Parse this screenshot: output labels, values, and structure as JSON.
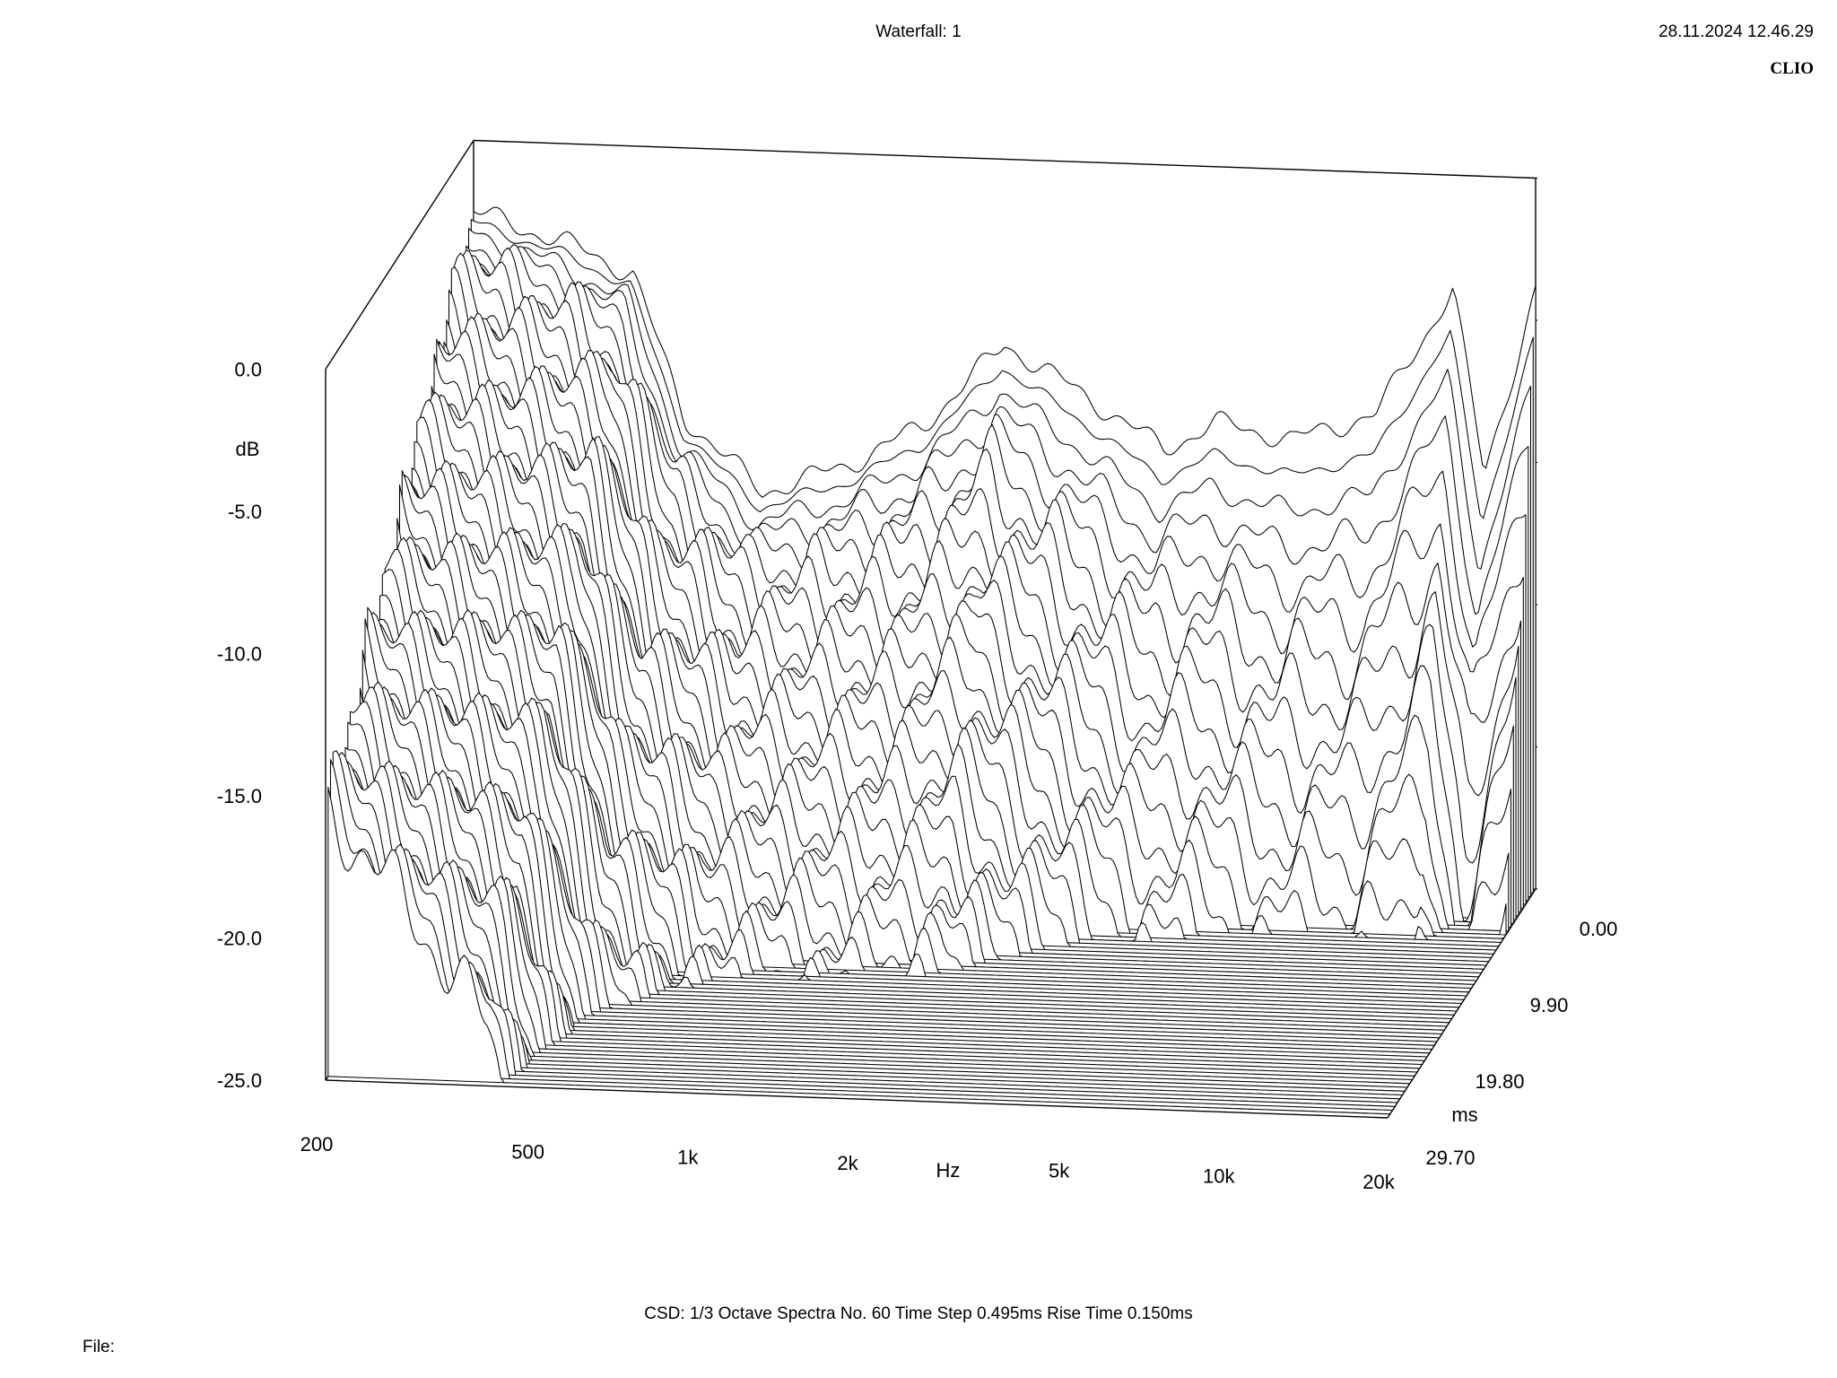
{
  "header": {
    "title": "Waterfall: 1",
    "timestamp": "28.11.2024 12.46.29",
    "brand": "CLIO"
  },
  "footer": {
    "info": "CSD:   1/3 Octave   Spectra No. 60   Time Step 0.495ms   Rise Time 0.150ms",
    "file_label": "File:"
  },
  "chart_data": {
    "type": "waterfall",
    "title": "Waterfall: 1",
    "x_axis": {
      "label": "Hz",
      "scale": "log",
      "range": [
        200,
        20000
      ],
      "ticks": [
        {
          "value": 200,
          "label": "200"
        },
        {
          "value": 500,
          "label": "500"
        },
        {
          "value": 1000,
          "label": "1k"
        },
        {
          "value": 2000,
          "label": "2k"
        },
        {
          "value": 5000,
          "label": "5k"
        },
        {
          "value": 10000,
          "label": "10k"
        },
        {
          "value": 20000,
          "label": "20k"
        }
      ]
    },
    "y_axis": {
      "label": "dB",
      "range": [
        -25,
        0
      ],
      "ticks": [
        {
          "value": 0,
          "label": "0.0"
        },
        {
          "value": -5,
          "label": "-5.0"
        },
        {
          "value": -10,
          "label": "-10.0"
        },
        {
          "value": -15,
          "label": "-15.0"
        },
        {
          "value": -20,
          "label": "-20.0"
        },
        {
          "value": -25,
          "label": "-25.0"
        }
      ]
    },
    "z_axis": {
      "label": "ms",
      "range": [
        0,
        29.7
      ],
      "ticks": [
        {
          "value": 0,
          "label": "0.00"
        },
        {
          "value": 9.9,
          "label": "9.90"
        },
        {
          "value": 19.8,
          "label": "19.80"
        },
        {
          "value": 29.7,
          "label": "29.70"
        }
      ]
    },
    "spectra_count": 60,
    "time_step_ms": 0.495,
    "rise_time_ms": 0.15,
    "initial_response": {
      "freq": [
        200,
        300,
        400,
        500,
        700,
        1000,
        1400,
        2000,
        3000,
        4000,
        5000,
        7000,
        10000,
        14000,
        16000,
        20000
      ],
      "db": [
        -2.5,
        -3.5,
        -4.5,
        -9.5,
        -12.0,
        -11.0,
        -9.5,
        -6.5,
        -8.5,
        -10.0,
        -9.0,
        -9.5,
        -8.5,
        -4.0,
        -10.5,
        -4.0
      ]
    }
  }
}
